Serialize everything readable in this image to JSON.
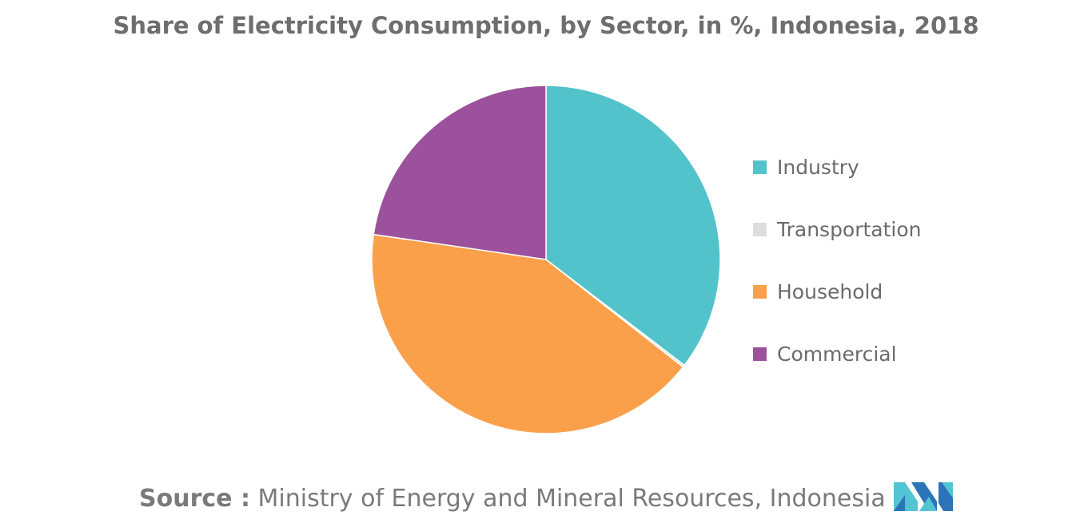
{
  "title": "Share of Electricity Consumption, by Sector, in %, Indonesia, 2018",
  "chart_data": {
    "type": "pie",
    "title": "Share of Electricity Consumption, by Sector, in %, Indonesia, 2018",
    "categories": [
      "Industry",
      "Transportation",
      "Household",
      "Commercial"
    ],
    "values": [
      35.4,
      0.2,
      41.7,
      22.7
    ],
    "colors": [
      "#52c3ca",
      "#dddddd",
      "#fba04a",
      "#9b519c"
    ],
    "start_angle_deg": 0,
    "direction": "clockwise",
    "legend_position": "right"
  },
  "legend": {
    "items": [
      {
        "label": "Industry",
        "color": "#52c3ca"
      },
      {
        "label": "Transportation",
        "color": "#dddddd"
      },
      {
        "label": "Household",
        "color": "#fba04a"
      },
      {
        "label": "Commercial",
        "color": "#9b519c"
      }
    ]
  },
  "footer": {
    "source_label": "Source :",
    "source_text": "Ministry of Energy and Mineral Resources, Indonesia"
  },
  "logo": {
    "icon": "mordor-intelligence-logo-icon",
    "colors": [
      "#2b74b8",
      "#53c4d2"
    ]
  }
}
